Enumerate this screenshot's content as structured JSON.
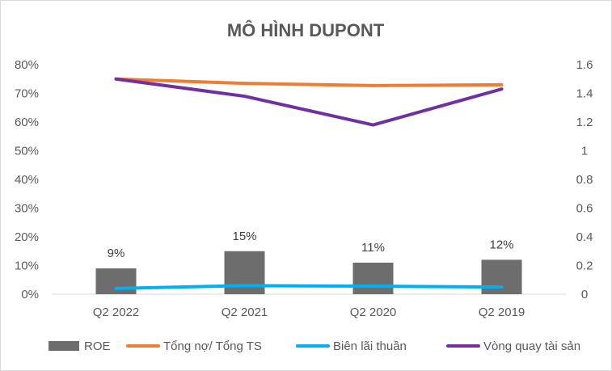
{
  "chart_data": {
    "type": "bar+line",
    "title": "MÔ HÌNH DUPONT",
    "categories": [
      "Q2 2022",
      "Q2 2021",
      "Q2 2020",
      "Q2 2019"
    ],
    "y_left": {
      "ticks": [
        "0%",
        "10%",
        "20%",
        "30%",
        "40%",
        "50%",
        "60%",
        "70%",
        "80%"
      ],
      "ylim": [
        0,
        0.8
      ]
    },
    "y_right": {
      "ticks": [
        "0",
        "0.2",
        "0.4",
        "0.6",
        "0.8",
        "1",
        "1.2",
        "1.4",
        "1.6"
      ],
      "ylim": [
        0,
        1.6
      ]
    },
    "series": [
      {
        "name": "ROE",
        "type": "bar",
        "axis": "left",
        "color": "#6d6d6d",
        "values": [
          0.09,
          0.15,
          0.11,
          0.12
        ],
        "labels": [
          "9%",
          "15%",
          "11%",
          "12%"
        ]
      },
      {
        "name": "Tổng nợ/ Tổng TS",
        "type": "line",
        "axis": "left",
        "color": "#ed7d31",
        "values": [
          0.75,
          0.735,
          0.727,
          0.73
        ]
      },
      {
        "name": "Biên lãi thuần",
        "type": "line",
        "axis": "left",
        "color": "#00b0f0",
        "values": [
          0.02,
          0.03,
          0.028,
          0.025
        ]
      },
      {
        "name": "Vòng quay tài sản",
        "type": "line",
        "axis": "right",
        "color": "#7030a0",
        "values": [
          1.5,
          1.38,
          1.18,
          1.43
        ]
      }
    ],
    "legend_position": "bottom",
    "grid": false
  }
}
